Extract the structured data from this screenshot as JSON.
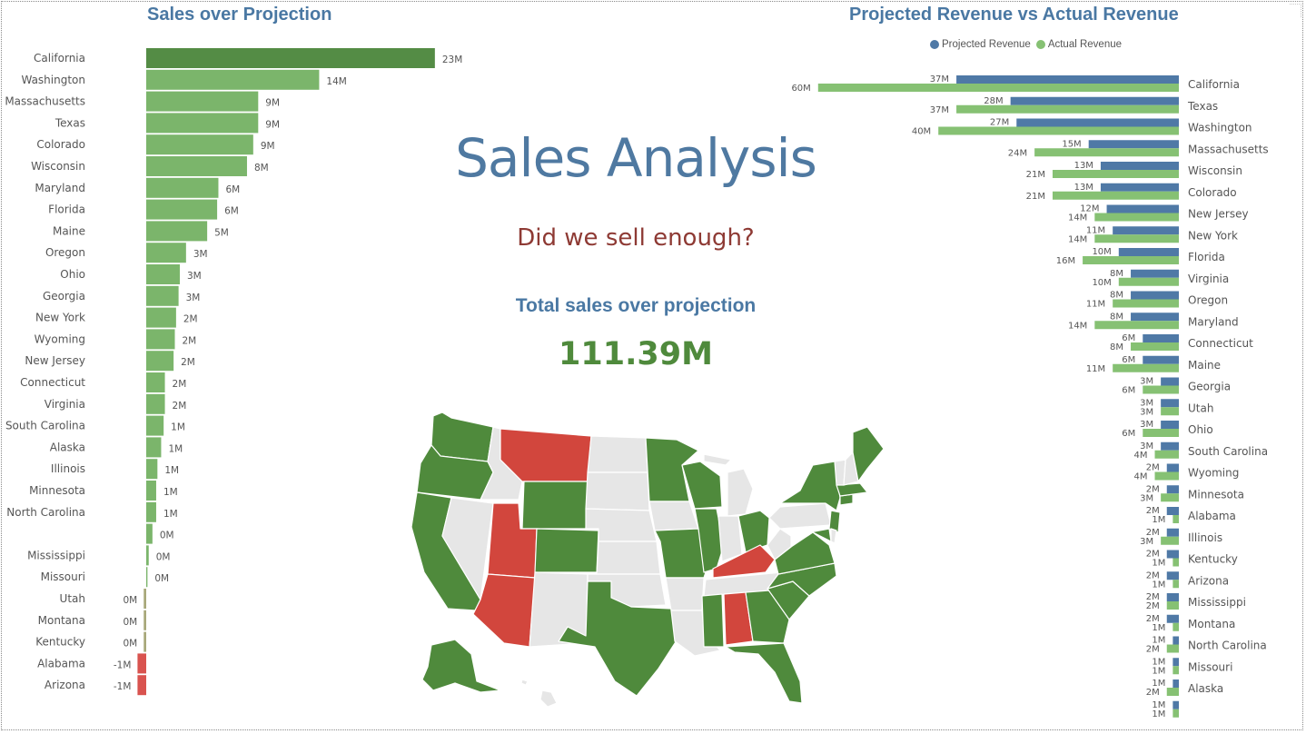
{
  "page": {
    "title": "Sales Analysis",
    "subtitle": "Did we sell enough?",
    "kpi_label": "Total sales over projection",
    "kpi_value": "111.39M"
  },
  "colors": {
    "title_blue": "#4a78a3",
    "positive_dark": "#548c45",
    "positive": "#7bb56b",
    "negative": "#d9534f",
    "neutral": "#a8a87a",
    "projected": "#4f79a6",
    "actual": "#86c173",
    "map_positive": "#4f8a3c",
    "map_negative": "#d2463d",
    "map_neutral": "#e6e6e6"
  },
  "chart_data": [
    {
      "type": "bar",
      "orientation": "horizontal",
      "title": "Sales over Projection",
      "unit": "M",
      "categories": [
        "California",
        "Washington",
        "Massachusetts",
        "Texas",
        "Colorado",
        "Wisconsin",
        "Maryland",
        "Florida",
        "Maine",
        "Oregon",
        "Ohio",
        "Georgia",
        "New York",
        "Wyoming",
        "New Jersey",
        "Connecticut",
        "Virginia",
        "South Carolina",
        "Alaska",
        "Illinois",
        "Minnesota",
        "North Carolina",
        "",
        "Mississippi",
        "Missouri",
        "Utah",
        "Montana",
        "Kentucky",
        "Alabama",
        "Arizona"
      ],
      "values": [
        23.2,
        13.9,
        9.0,
        9.0,
        8.6,
        8.1,
        5.8,
        5.7,
        4.9,
        3.2,
        2.7,
        2.6,
        2.4,
        2.3,
        2.2,
        1.5,
        1.5,
        1.4,
        1.2,
        0.9,
        0.8,
        0.8,
        0.5,
        0.2,
        0.1,
        -0.2,
        -0.2,
        -0.2,
        -0.7,
        -0.7
      ],
      "labels": [
        "23M",
        "14M",
        "9M",
        "9M",
        "9M",
        "8M",
        "6M",
        "6M",
        "5M",
        "3M",
        "3M",
        "3M",
        "2M",
        "2M",
        "2M",
        "2M",
        "2M",
        "1M",
        "1M",
        "1M",
        "1M",
        "1M",
        "0M",
        "0M",
        "0M",
        "0M",
        "0M",
        "0M",
        "-1M",
        "-1M"
      ]
    },
    {
      "type": "bar",
      "orientation": "horizontal",
      "title": "Projected Revenue vs Actual Revenue",
      "unit": "M",
      "legend": [
        "Projected Revenue",
        "Actual Revenue"
      ],
      "categories": [
        "California",
        "Texas",
        "Washington",
        "Massachusetts",
        "Wisconsin",
        "Colorado",
        "New Jersey",
        "New York",
        "Florida",
        "Virginia",
        "Oregon",
        "Maryland",
        "Connecticut",
        "Maine",
        "Georgia",
        "Utah",
        "Ohio",
        "South Carolina",
        "Wyoming",
        "Minnesota",
        "Alabama",
        "Illinois",
        "Kentucky",
        "Arizona",
        "Mississippi",
        "Montana",
        "North Carolina",
        "Missouri",
        "Alaska",
        ""
      ],
      "series": [
        {
          "name": "Projected Revenue",
          "values": [
            37,
            28,
            27,
            15,
            13,
            13,
            12,
            11,
            10,
            8,
            8,
            8,
            6,
            6,
            3,
            3,
            3,
            3,
            2,
            2,
            2,
            2,
            2,
            2,
            2,
            2,
            1,
            1,
            1,
            1
          ],
          "labels": [
            "37M",
            "28M",
            "27M",
            "15M",
            "13M",
            "13M",
            "12M",
            "11M",
            "10M",
            "8M",
            "8M",
            "8M",
            "6M",
            "6M",
            "3M",
            "3M",
            "3M",
            "3M",
            "2M",
            "2M",
            "2M",
            "2M",
            "2M",
            "2M",
            "2M",
            "2M",
            "1M",
            "1M",
            "1M",
            "1M"
          ]
        },
        {
          "name": "Actual Revenue",
          "values": [
            60,
            37,
            40,
            24,
            21,
            21,
            14,
            14,
            16,
            10,
            11,
            14,
            8,
            11,
            6,
            3,
            6,
            4,
            4,
            3,
            1,
            3,
            1,
            1,
            2,
            1,
            2,
            1,
            2,
            1
          ],
          "labels": [
            "60M",
            "37M",
            "40M",
            "24M",
            "21M",
            "21M",
            "14M",
            "14M",
            "16M",
            "10M",
            "11M",
            "14M",
            "8M",
            "11M",
            "6M",
            "3M",
            "6M",
            "4M",
            "4M",
            "3M",
            "1M",
            "3M",
            "1M",
            "1M",
            "2M",
            "1M",
            "2M",
            "1M",
            "2M",
            "1M"
          ]
        }
      ]
    }
  ]
}
